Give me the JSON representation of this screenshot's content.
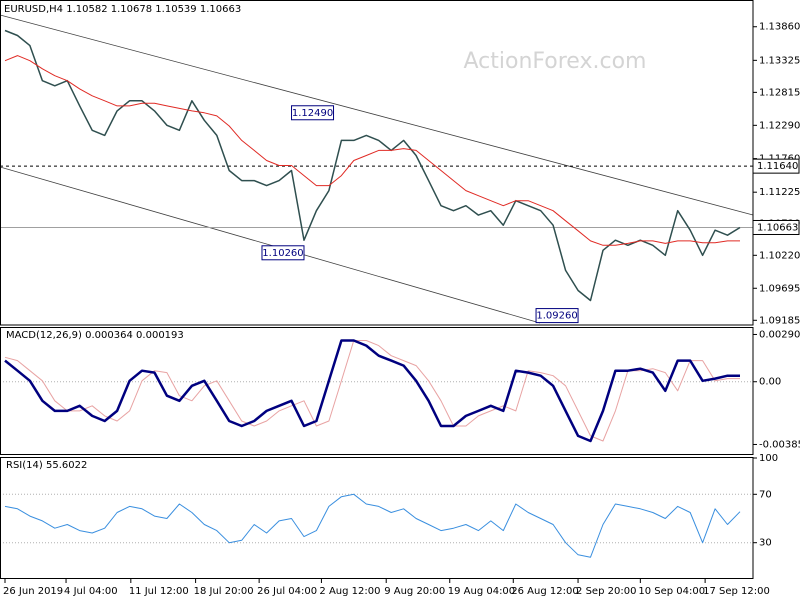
{
  "chart_data": [
    {
      "type": "line",
      "symbol": "EURUSD,H4",
      "ohlc": {
        "open": 1.10582,
        "high": 1.10678,
        "low": 1.10539,
        "close": 1.10663
      },
      "watermark": "ActionForex.com",
      "xlim": [
        0,
        59
      ],
      "ylim": [
        1.0911,
        1.1427
      ],
      "yticks": [
        {
          "value": 1.1386,
          "label": "1.13860"
        },
        1.13325,
        1.12815,
        {
          "value": 1.1229,
          "label": "1.12290"
        },
        {
          "value": 1.1176,
          "label": "1.11760"
        },
        1.11225,
        {
          "value": 1.1073,
          "label": "1.10730"
        },
        {
          "value": 1.1022,
          "label": "1.10220"
        },
        1.09695,
        1.09185
      ],
      "hlines": [
        {
          "value": 1.1164,
          "label": "1.11640",
          "dashed": true,
          "color": "#000000"
        },
        {
          "value": 1.10663,
          "dashed": false,
          "color": "#a0a0a0"
        }
      ],
      "annotations": [
        {
          "index": 23,
          "value": 1.1249,
          "label": "1.12490",
          "side": "right"
        },
        {
          "index": 24,
          "value": 1.1026,
          "label": "1.10260",
          "side": "left"
        },
        {
          "index": 46,
          "value": 1.0926,
          "label": "1.09260",
          "side": "left"
        }
      ],
      "series": [
        {
          "color": "#2f4f4f",
          "width": 1.5,
          "values": [
            1.138,
            1.1372,
            1.1356,
            1.13,
            1.1292,
            1.13,
            1.126,
            1.1221,
            1.1213,
            1.1252,
            1.1268,
            1.1268,
            1.1252,
            1.1229,
            1.1221,
            1.1268,
            1.1237,
            1.1213,
            1.1157,
            1.1141,
            1.1141,
            1.1133,
            1.1141,
            1.1157,
            1.1046,
            1.1093,
            1.1125,
            1.1205,
            1.1205,
            1.1213,
            1.1205,
            1.1189,
            1.1205,
            1.1181,
            1.1141,
            1.1101,
            1.1093,
            1.1101,
            1.1086,
            1.1093,
            1.107,
            1.1109,
            1.1101,
            1.1093,
            1.107,
            1.0998,
            1.0966,
            1.095,
            1.103,
            1.1046,
            1.1038,
            1.1046,
            1.1038,
            1.1022,
            1.1093,
            1.1062,
            1.1022,
            1.1062,
            1.1054,
            1.10663
          ]
        },
        {
          "color": "#e02b25",
          "width": 1,
          "values": [
            1.1332,
            1.134,
            1.1332,
            1.1319,
            1.1308,
            1.13,
            1.1287,
            1.1276,
            1.1268,
            1.126,
            1.126,
            1.1264,
            1.1264,
            1.126,
            1.1256,
            1.1252,
            1.1249,
            1.1244,
            1.1228,
            1.1205,
            1.1189,
            1.1173,
            1.1165,
            1.1165,
            1.1149,
            1.1133,
            1.1133,
            1.1149,
            1.1173,
            1.1181,
            1.1189,
            1.1189,
            1.1192,
            1.1189,
            1.1173,
            1.1157,
            1.1141,
            1.1125,
            1.1117,
            1.1109,
            1.1101,
            1.1109,
            1.1109,
            1.1101,
            1.1093,
            1.1077,
            1.1061,
            1.1045,
            1.1038,
            1.1038,
            1.1041,
            1.1045,
            1.1045,
            1.1041,
            1.1045,
            1.1045,
            1.1042,
            1.1042,
            1.1045,
            1.1045
          ]
        }
      ]
    },
    {
      "type": "line",
      "title": "MACD(12,26,9)",
      "xlim": [
        0,
        59
      ],
      "ylim": [
        -0.0045,
        0.0033
      ],
      "yticks": [
        0.002903,
        {
          "value": 0,
          "label": "0.00"
        },
        -0.003853
      ],
      "zero_line": true,
      "series": [
        {
          "color": "#e8a3a3",
          "width": 1,
          "values": [
            0.0015,
            0.0013,
            0.00068,
            6e-05,
            -0.00117,
            -0.00179,
            -0.00179,
            -0.00148,
            -0.0021,
            -0.00241,
            -0.00179,
            6e-05,
            0.00068,
            0.00056,
            -0.00086,
            -0.00117,
            -0.00025,
            6e-05,
            -0.00117,
            -0.00241,
            -0.00272,
            -0.00241,
            -0.00179,
            -0.00148,
            -0.00117,
            -0.00272,
            -0.00241,
            6e-05,
            0.00253,
            0.00253,
            0.00222,
            0.0016,
            0.0013,
            0.00099,
            6e-05,
            -0.00117,
            -0.00272,
            -0.00272,
            -0.0021,
            -0.00179,
            -0.00148,
            -0.00179,
            0.00068,
            0.00056,
            0.00037,
            -0.00025,
            -0.00179,
            -0.00333,
            -0.00364,
            -0.00179,
            0.00068,
            0.00068,
            0.0008,
            0.00056,
            -0.00056,
            0.0013,
            0.0013,
            6e-05,
            0.00019,
            0.000193
          ]
        },
        {
          "color": "#00007f",
          "width": 2.5,
          "values": [
            0.0013,
            0.00068,
            6e-05,
            -0.00117,
            -0.00179,
            -0.00179,
            -0.00148,
            -0.0021,
            -0.00241,
            -0.00179,
            6e-05,
            0.00068,
            0.00056,
            -0.00086,
            -0.00117,
            -0.00025,
            6e-05,
            -0.00117,
            -0.00241,
            -0.00272,
            -0.00241,
            -0.00179,
            -0.00148,
            -0.00117,
            -0.00272,
            -0.00241,
            6e-05,
            0.00253,
            0.00253,
            0.00222,
            0.0016,
            0.0013,
            0.00099,
            6e-05,
            -0.00117,
            -0.00272,
            -0.00272,
            -0.0021,
            -0.00179,
            -0.00148,
            -0.00179,
            0.00068,
            0.00056,
            0.00037,
            -0.00025,
            -0.00179,
            -0.00333,
            -0.00364,
            -0.00179,
            0.00068,
            0.00068,
            0.0008,
            0.00056,
            -0.00056,
            0.0013,
            0.0013,
            6e-05,
            0.00019,
            0.00037,
            0.000364
          ]
        }
      ]
    },
    {
      "type": "line",
      "title": "RSI(14)",
      "xlim": [
        0,
        59
      ],
      "ylim": [
        0,
        100
      ],
      "yticks": [
        100,
        70,
        30
      ],
      "levels": [
        70,
        30
      ],
      "series": [
        {
          "color": "#3a8fdf",
          "width": 1,
          "values": [
            60,
            58,
            52,
            48,
            42,
            45,
            40,
            38,
            42,
            55,
            60,
            58,
            52,
            50,
            62,
            55,
            45,
            40,
            30,
            32,
            45,
            38,
            48,
            50,
            35,
            40,
            60,
            68,
            70,
            62,
            60,
            55,
            58,
            50,
            45,
            40,
            42,
            45,
            40,
            48,
            40,
            62,
            55,
            50,
            45,
            30,
            20,
            18,
            45,
            62,
            60,
            58,
            55,
            50,
            60,
            55,
            30,
            58,
            45,
            55.6022
          ]
        }
      ],
      "xticks": [
        {
          "value": 0,
          "label": "26 Jun 2019"
        },
        {
          "value": 4.9,
          "label": "4 Jul 04:00"
        },
        {
          "value": 10.1,
          "label": "11 Jul 12:00"
        },
        {
          "value": 15.3,
          "label": "18 Jul 20:00"
        },
        {
          "value": 20.4,
          "label": "26 Jul 04:00"
        },
        {
          "value": 25.4,
          "label": "2 Aug 12:00"
        },
        {
          "value": 30.6,
          "label": "9 Aug 20:00"
        },
        {
          "value": 35.7,
          "label": "19 Aug 04:00"
        },
        {
          "value": 40.8,
          "label": "26 Aug 12:00"
        },
        {
          "value": 46,
          "label": "2 Sep 20:00"
        },
        {
          "value": 51,
          "label": "10 Sep 04:00"
        },
        {
          "value": 56.2,
          "label": "17 Sep 12:00"
        }
      ]
    }
  ]
}
